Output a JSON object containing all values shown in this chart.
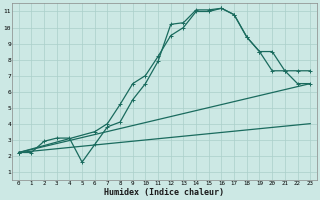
{
  "xlabel": "Humidex (Indice chaleur)",
  "xlim": [
    -0.5,
    23.5
  ],
  "ylim": [
    0.5,
    11.5
  ],
  "xticks": [
    0,
    1,
    2,
    3,
    4,
    5,
    6,
    7,
    8,
    9,
    10,
    11,
    12,
    13,
    14,
    15,
    16,
    17,
    18,
    19,
    20,
    21,
    22,
    23
  ],
  "yticks": [
    1,
    2,
    3,
    4,
    5,
    6,
    7,
    8,
    9,
    10,
    11
  ],
  "line_color": "#1a6b5e",
  "bg_color": "#cce8e4",
  "grid_color": "#aacfca",
  "line1_x": [
    0,
    1,
    2,
    3,
    4,
    5,
    6,
    7,
    8,
    9,
    10,
    11,
    12,
    13,
    14,
    15,
    16,
    17,
    18,
    19,
    20,
    21,
    22,
    23
  ],
  "line1_y": [
    2.2,
    2.2,
    2.9,
    3.1,
    3.1,
    1.6,
    2.7,
    3.8,
    4.1,
    5.5,
    6.5,
    7.9,
    10.2,
    10.3,
    11.1,
    11.1,
    11.2,
    10.8,
    9.4,
    8.5,
    7.3,
    7.3,
    6.5,
    6.5
  ],
  "line2_x": [
    0,
    6,
    7,
    8,
    9,
    10,
    11,
    12,
    13,
    14,
    15,
    16,
    17,
    18,
    19,
    20,
    21,
    22,
    23
  ],
  "line2_y": [
    2.2,
    3.5,
    4.0,
    5.2,
    6.5,
    7.0,
    8.2,
    9.5,
    10.0,
    11.0,
    11.0,
    11.2,
    10.8,
    9.4,
    8.5,
    8.5,
    7.3,
    7.3,
    7.3
  ],
  "line3_x": [
    0,
    23
  ],
  "line3_y": [
    2.2,
    6.5
  ],
  "line4_x": [
    0,
    23
  ],
  "line4_y": [
    2.2,
    4.0
  ],
  "marker": "+"
}
